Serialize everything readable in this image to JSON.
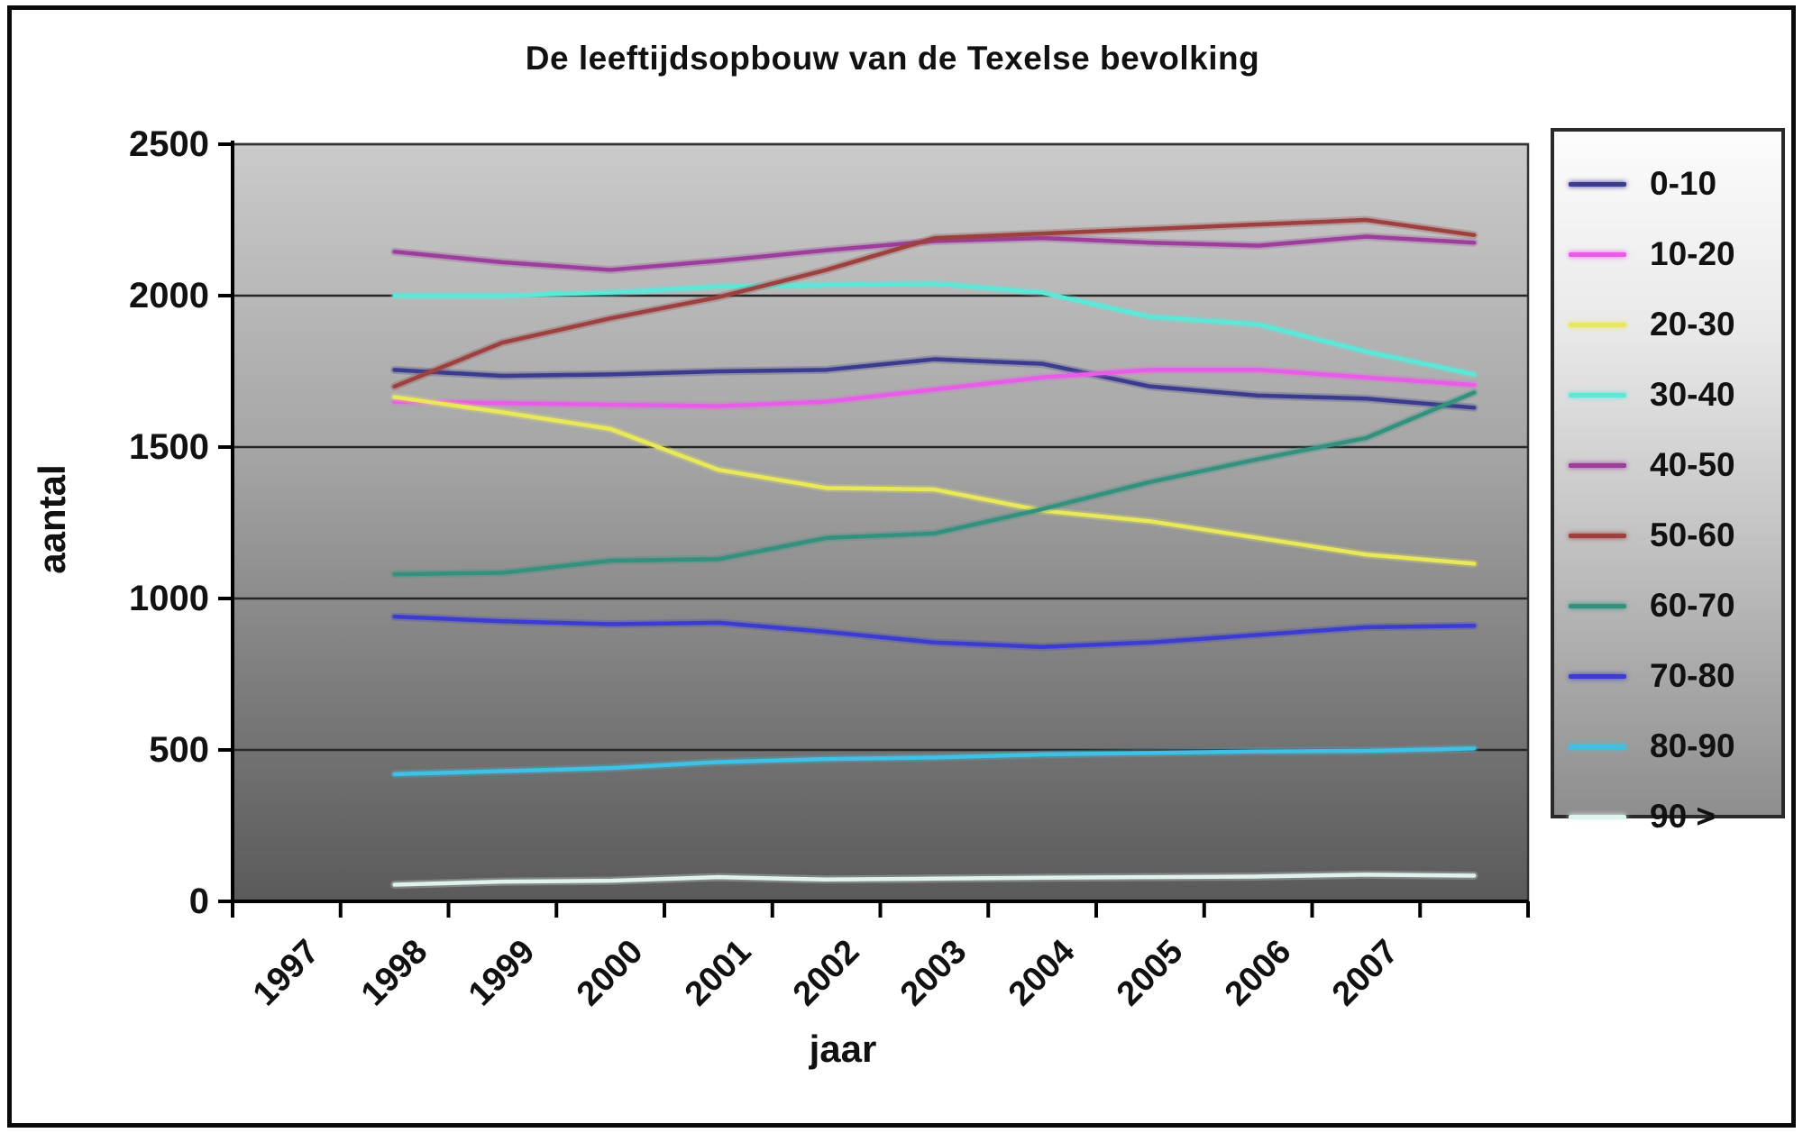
{
  "chart_data": {
    "type": "line",
    "title": "De leeftijdsopbouw van de Texelse bevolking",
    "xlabel": "jaar",
    "ylabel": "aantal",
    "ylim": [
      0,
      2500
    ],
    "y_ticks": [
      0,
      500,
      1000,
      1500,
      2000,
      2500
    ],
    "x_tick_labels": [
      "1997",
      "1998",
      "1999",
      "2000",
      "2001",
      "2002",
      "2003",
      "2004",
      "2005",
      "2006",
      "2007"
    ],
    "num_x_intervals": 12,
    "data_start_interval": 1,
    "grid": "horizontal",
    "legend_position": "right",
    "plot_bg_top": "#c9c9c9",
    "plot_bg_bottom": "#5c5c5c",
    "series": [
      {
        "name": "0-10",
        "color": "#3c3c8e",
        "values": [
          1755,
          1735,
          1740,
          1750,
          1755,
          1790,
          1775,
          1700,
          1670,
          1660,
          1630
        ]
      },
      {
        "name": "10-20",
        "color": "#e85ce8",
        "values": [
          1650,
          1645,
          1640,
          1635,
          1650,
          1690,
          1730,
          1755,
          1755,
          1730,
          1705
        ]
      },
      {
        "name": "20-30",
        "color": "#e8e85a",
        "values": [
          1665,
          1615,
          1560,
          1425,
          1365,
          1360,
          1290,
          1255,
          1200,
          1145,
          1115
        ]
      },
      {
        "name": "30-40",
        "color": "#5ce8d8",
        "values": [
          2000,
          2000,
          2010,
          2030,
          2035,
          2040,
          2010,
          1930,
          1905,
          1815,
          1740
        ]
      },
      {
        "name": "40-50",
        "color": "#9c3f9c",
        "values": [
          2145,
          2110,
          2085,
          2115,
          2150,
          2180,
          2190,
          2175,
          2165,
          2195,
          2175
        ]
      },
      {
        "name": "50-60",
        "color": "#9c4040",
        "values": [
          1700,
          1845,
          1925,
          1995,
          2085,
          2190,
          2205,
          2220,
          2235,
          2250,
          2200
        ]
      },
      {
        "name": "60-70",
        "color": "#33917e",
        "values": [
          1080,
          1085,
          1125,
          1130,
          1200,
          1215,
          1295,
          1385,
          1460,
          1530,
          1680
        ]
      },
      {
        "name": "70-80",
        "color": "#3c3cd0",
        "values": [
          940,
          925,
          915,
          920,
          890,
          855,
          840,
          855,
          880,
          905,
          910
        ]
      },
      {
        "name": "80-90",
        "color": "#3fc1e6",
        "values": [
          420,
          430,
          440,
          460,
          470,
          475,
          485,
          490,
          495,
          497,
          505
        ]
      },
      {
        "name": "90 >",
        "color": "#dff2ee",
        "values": [
          55,
          65,
          68,
          80,
          72,
          75,
          78,
          80,
          82,
          88,
          85
        ]
      }
    ]
  }
}
